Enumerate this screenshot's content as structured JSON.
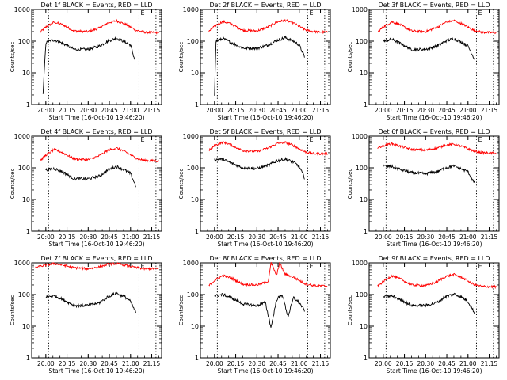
{
  "figure": {
    "colors": {
      "events": "#000000",
      "lld": "#ff0000",
      "axes": "#000000",
      "background": "#ffffff"
    },
    "ylabel": "Counts/sec",
    "edge_marker": "E",
    "x_tick_labels": [
      "20:00",
      "20:15",
      "20:30",
      "20:45",
      "21:00",
      "21:15"
    ],
    "y_tick_labels": [
      "1",
      "10",
      "100",
      "1000"
    ]
  },
  "chart_data": [
    {
      "type": "line",
      "title": "Det 1f BLACK = Events, RED = LLD",
      "xlabel": "Start Time (16-Oct-10 19:46:20)",
      "ylabel": "Counts/sec",
      "y_scale": "log",
      "ylim": [
        1,
        1000
      ],
      "xlim": [
        "19:50",
        "21:22"
      ],
      "vlines": [
        "20:02",
        "21:06",
        "21:18"
      ],
      "vline_style": "dotted",
      "series": [
        {
          "name": "Events",
          "color": "#000000",
          "x": [
            "19:58",
            "20:00",
            "20:06",
            "20:12",
            "20:20",
            "20:30",
            "20:38",
            "20:44",
            "20:50",
            "20:56",
            "21:00",
            "21:03"
          ],
          "y": [
            2,
            90,
            110,
            85,
            55,
            55,
            70,
            100,
            125,
            95,
            75,
            25
          ]
        },
        {
          "name": "LLD",
          "color": "#ff0000",
          "x": [
            "19:56",
            "20:00",
            "20:06",
            "20:12",
            "20:20",
            "20:30",
            "20:38",
            "20:44",
            "20:50",
            "20:56",
            "21:04",
            "21:10",
            "21:20"
          ],
          "y": [
            190,
            280,
            400,
            330,
            210,
            200,
            260,
            380,
            440,
            350,
            220,
            190,
            185
          ]
        }
      ]
    },
    {
      "type": "line",
      "title": "Det 2f BLACK = Events, RED = LLD",
      "xlabel": "Start Time (16-Oct-10 19:46:20)",
      "ylabel": "Counts/sec",
      "y_scale": "log",
      "ylim": [
        1,
        1000
      ],
      "xlim": [
        "19:50",
        "21:22"
      ],
      "vlines": [
        "20:02",
        "21:06",
        "21:18"
      ],
      "vline_style": "dotted",
      "series": [
        {
          "name": "Events",
          "color": "#000000",
          "x": [
            "20:00",
            "20:01",
            "20:06",
            "20:12",
            "20:20",
            "20:30",
            "20:38",
            "20:44",
            "20:50",
            "20:56",
            "21:00",
            "21:04"
          ],
          "y": [
            2,
            100,
            120,
            90,
            60,
            60,
            75,
            105,
            130,
            100,
            75,
            30
          ]
        },
        {
          "name": "LLD",
          "color": "#ff0000",
          "x": [
            "19:56",
            "20:00",
            "20:06",
            "20:12",
            "20:20",
            "20:30",
            "20:38",
            "20:44",
            "20:50",
            "20:56",
            "21:04",
            "21:10",
            "21:20"
          ],
          "y": [
            200,
            300,
            420,
            350,
            220,
            210,
            280,
            400,
            460,
            370,
            230,
            200,
            190
          ]
        }
      ]
    },
    {
      "type": "line",
      "title": "Det 3f BLACK = Events, RED = LLD",
      "xlabel": "Start Time (16-Oct-10 19:46:20)",
      "ylabel": "Counts/sec",
      "y_scale": "log",
      "ylim": [
        1,
        1000
      ],
      "xlim": [
        "19:50",
        "21:22"
      ],
      "vlines": [
        "20:02",
        "21:06",
        "21:18"
      ],
      "vline_style": "dotted",
      "series": [
        {
          "name": "Events",
          "color": "#000000",
          "x": [
            "20:00",
            "20:06",
            "20:12",
            "20:20",
            "20:30",
            "20:38",
            "20:44",
            "20:50",
            "20:56",
            "21:00",
            "21:05"
          ],
          "y": [
            100,
            115,
            85,
            55,
            55,
            70,
            100,
            120,
            90,
            70,
            25
          ]
        },
        {
          "name": "LLD",
          "color": "#ff0000",
          "x": [
            "19:56",
            "20:00",
            "20:06",
            "20:12",
            "20:20",
            "20:30",
            "20:38",
            "20:44",
            "20:50",
            "20:56",
            "21:04",
            "21:10",
            "21:20"
          ],
          "y": [
            190,
            280,
            410,
            330,
            210,
            200,
            270,
            390,
            450,
            350,
            220,
            190,
            185
          ]
        }
      ]
    },
    {
      "type": "line",
      "title": "Det 4f BLACK = Events, RED = LLD",
      "xlabel": "Start Time (16-Oct-10 19:46:20)",
      "ylabel": "Counts/sec",
      "y_scale": "log",
      "ylim": [
        1,
        1000
      ],
      "xlim": [
        "19:50",
        "21:22"
      ],
      "vlines": [
        "20:02",
        "21:06",
        "21:18"
      ],
      "vline_style": "dotted",
      "series": [
        {
          "name": "Events",
          "color": "#000000",
          "x": [
            "20:00",
            "20:06",
            "20:12",
            "20:20",
            "20:30",
            "20:38",
            "20:44",
            "20:50",
            "20:56",
            "21:00",
            "21:04"
          ],
          "y": [
            85,
            95,
            75,
            45,
            45,
            55,
            85,
            110,
            85,
            65,
            25
          ]
        },
        {
          "name": "LLD",
          "color": "#ff0000",
          "x": [
            "19:56",
            "20:00",
            "20:06",
            "20:12",
            "20:20",
            "20:30",
            "20:38",
            "20:44",
            "20:50",
            "20:56",
            "21:04",
            "21:10",
            "21:20"
          ],
          "y": [
            170,
            250,
            380,
            300,
            190,
            180,
            240,
            360,
            420,
            330,
            200,
            170,
            165
          ]
        }
      ]
    },
    {
      "type": "line",
      "title": "Det 5f BLACK = Events, RED = LLD",
      "xlabel": "Start Time (16-Oct-10 19:46:20)",
      "ylabel": "Counts/sec",
      "y_scale": "log",
      "ylim": [
        1,
        1000
      ],
      "xlim": [
        "19:50",
        "21:22"
      ],
      "vlines": [
        "20:02",
        "21:06",
        "21:18"
      ],
      "vline_style": "dotted",
      "series": [
        {
          "name": "Events",
          "color": "#000000",
          "x": [
            "20:00",
            "20:06",
            "20:12",
            "20:20",
            "20:30",
            "20:38",
            "20:44",
            "20:50",
            "20:56",
            "21:00",
            "21:04"
          ],
          "y": [
            180,
            190,
            140,
            100,
            95,
            120,
            165,
            190,
            150,
            110,
            45
          ]
        },
        {
          "name": "LLD",
          "color": "#ff0000",
          "x": [
            "19:56",
            "20:00",
            "20:06",
            "20:12",
            "20:20",
            "20:30",
            "20:38",
            "20:44",
            "20:50",
            "20:56",
            "21:04",
            "21:10",
            "21:20"
          ],
          "y": [
            350,
            500,
            650,
            520,
            350,
            330,
            420,
            580,
            640,
            500,
            320,
            280,
            280
          ]
        }
      ]
    },
    {
      "type": "line",
      "title": "Det 6f BLACK = Events, RED = LLD",
      "xlabel": "Start Time (16-Oct-10 19:46:20)",
      "ylabel": "Counts/sec",
      "y_scale": "log",
      "ylim": [
        1,
        1000
      ],
      "xlim": [
        "19:50",
        "21:22"
      ],
      "vlines": [
        "20:02",
        "21:06",
        "21:18"
      ],
      "vline_style": "dotted",
      "series": [
        {
          "name": "Events",
          "color": "#000000",
          "x": [
            "20:00",
            "20:06",
            "20:12",
            "20:20",
            "20:30",
            "20:38",
            "20:44",
            "20:50",
            "20:56",
            "21:00",
            "21:05"
          ],
          "y": [
            115,
            110,
            90,
            70,
            65,
            75,
            100,
            115,
            90,
            75,
            30
          ]
        },
        {
          "name": "LLD",
          "color": "#ff0000",
          "x": [
            "19:56",
            "20:00",
            "20:06",
            "20:12",
            "20:20",
            "20:30",
            "20:38",
            "20:44",
            "20:50",
            "20:56",
            "21:04",
            "21:10",
            "21:20"
          ],
          "y": [
            420,
            500,
            580,
            480,
            380,
            360,
            420,
            520,
            560,
            470,
            340,
            300,
            290
          ]
        }
      ]
    },
    {
      "type": "line",
      "title": "Det 7f BLACK = Events, RED = LLD",
      "xlabel": "Start Time (16-Oct-10 19:46:20)",
      "ylabel": "Counts/sec",
      "y_scale": "log",
      "ylim": [
        1,
        1000
      ],
      "xlim": [
        "19:50",
        "21:22"
      ],
      "vlines": [
        "20:02",
        "21:06",
        "21:18"
      ],
      "vline_style": "dotted",
      "series": [
        {
          "name": "Events",
          "color": "#000000",
          "x": [
            "20:00",
            "20:06",
            "20:12",
            "20:20",
            "20:30",
            "20:38",
            "20:44",
            "20:50",
            "20:56",
            "21:00",
            "21:04"
          ],
          "y": [
            85,
            90,
            70,
            45,
            45,
            55,
            85,
            110,
            85,
            60,
            25
          ]
        },
        {
          "name": "LLD",
          "color": "#ff0000",
          "x": [
            "19:52",
            "20:00",
            "20:06",
            "20:12",
            "20:20",
            "20:30",
            "20:38",
            "20:44",
            "20:50",
            "20:56",
            "21:04",
            "21:10",
            "21:20"
          ],
          "y": [
            700,
            850,
            950,
            850,
            700,
            650,
            750,
            900,
            950,
            850,
            700,
            650,
            650
          ]
        }
      ]
    },
    {
      "type": "line",
      "title": "Det 8f BLACK = Events, RED = LLD",
      "xlabel": "Start Time (16-Oct-10 19:46:20)",
      "ylabel": "Counts/sec",
      "y_scale": "log",
      "ylim": [
        1,
        1000
      ],
      "xlim": [
        "19:50",
        "21:22"
      ],
      "vlines": [
        "20:02",
        "21:06",
        "21:18"
      ],
      "vline_style": "dotted",
      "series": [
        {
          "name": "Events",
          "color": "#000000",
          "x": [
            "20:00",
            "20:06",
            "20:12",
            "20:20",
            "20:30",
            "20:36",
            "20:40",
            "20:44",
            "20:48",
            "20:52",
            "20:56",
            "21:00",
            "21:04"
          ],
          "y": [
            90,
            100,
            80,
            50,
            45,
            55,
            9,
            70,
            100,
            20,
            80,
            55,
            30
          ]
        },
        {
          "name": "LLD",
          "color": "#ff0000",
          "x": [
            "19:56",
            "20:00",
            "20:06",
            "20:12",
            "20:20",
            "20:30",
            "20:38",
            "20:40",
            "20:44",
            "20:46",
            "20:50",
            "20:56",
            "21:04",
            "21:10",
            "21:20"
          ],
          "y": [
            190,
            280,
            400,
            330,
            210,
            200,
            260,
            1000,
            400,
            1000,
            440,
            350,
            220,
            190,
            185
          ]
        }
      ]
    },
    {
      "type": "line",
      "title": "Det 9f BLACK = Events, RED = LLD",
      "xlabel": "Start Time (16-Oct-10 19:46:20)",
      "ylabel": "Counts/sec",
      "y_scale": "log",
      "ylim": [
        1,
        1000
      ],
      "xlim": [
        "19:50",
        "21:22"
      ],
      "vlines": [
        "20:02",
        "21:06",
        "21:18"
      ],
      "vline_style": "dotted",
      "series": [
        {
          "name": "Events",
          "color": "#000000",
          "x": [
            "20:00",
            "20:06",
            "20:12",
            "20:20",
            "20:30",
            "20:38",
            "20:44",
            "20:50",
            "20:56",
            "21:00",
            "21:05"
          ],
          "y": [
            85,
            90,
            70,
            45,
            45,
            55,
            85,
            105,
            80,
            60,
            25
          ]
        },
        {
          "name": "LLD",
          "color": "#ff0000",
          "x": [
            "19:56",
            "20:00",
            "20:06",
            "20:12",
            "20:20",
            "20:30",
            "20:38",
            "20:44",
            "20:50",
            "20:56",
            "21:04",
            "21:10",
            "21:20"
          ],
          "y": [
            180,
            260,
            390,
            310,
            200,
            190,
            250,
            370,
            430,
            340,
            210,
            180,
            175
          ]
        }
      ]
    }
  ]
}
